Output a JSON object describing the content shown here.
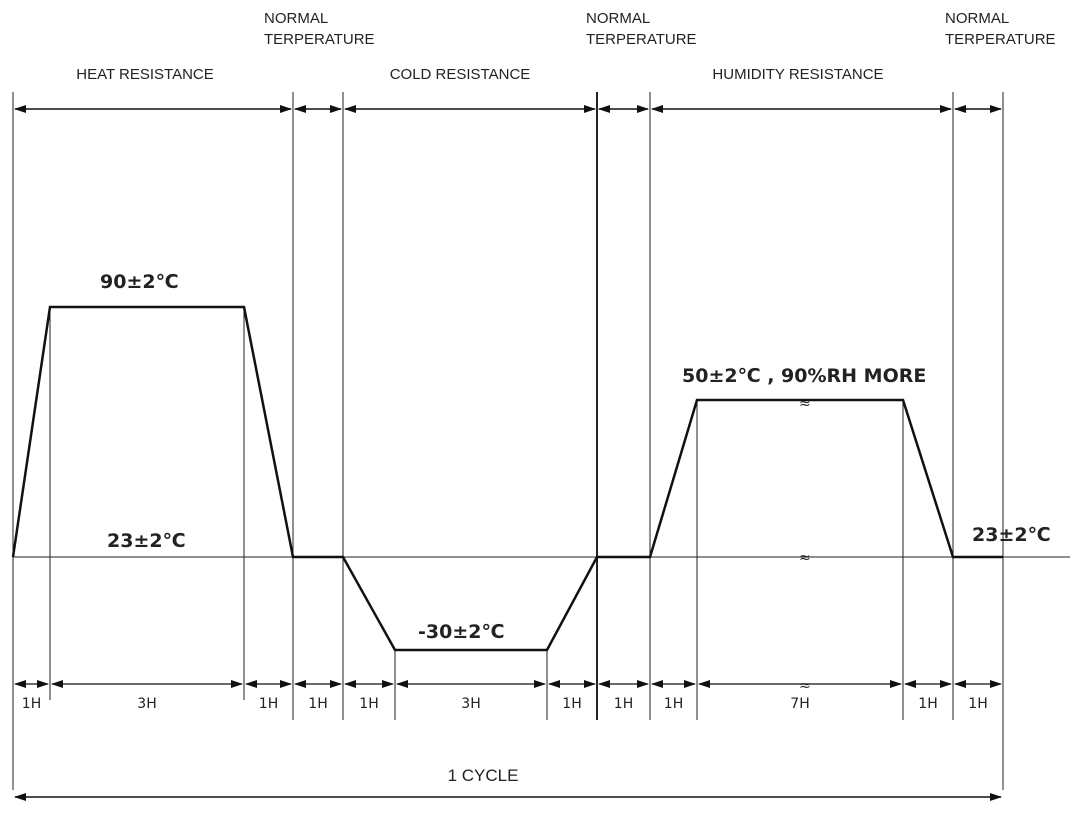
{
  "sections": {
    "heat": "HEAT RESISTANCE",
    "cold": "COLD RESISTANCE",
    "humidity": "HUMIDITY RESISTANCE",
    "normal_1": "NORMAL TERPERATURE",
    "normal_2": "NORMAL TERPERATURE",
    "normal_3": "NORMAL TERPERATURE"
  },
  "temperatures": {
    "heat": "90±2℃",
    "base_left": "23±2℃",
    "cold": "-30±2℃",
    "humidity": "50±2℃ , 90%RH MORE",
    "base_right": "23±2℃"
  },
  "durations": [
    "1H",
    "3H",
    "1H",
    "1H",
    "1H",
    "3H",
    "1H",
    "1H",
    "1H",
    "7H",
    "1H",
    "1H"
  ],
  "cycle_label": "1 CYCLE",
  "colors": {
    "line": "#111111",
    "text": "#222222"
  }
}
